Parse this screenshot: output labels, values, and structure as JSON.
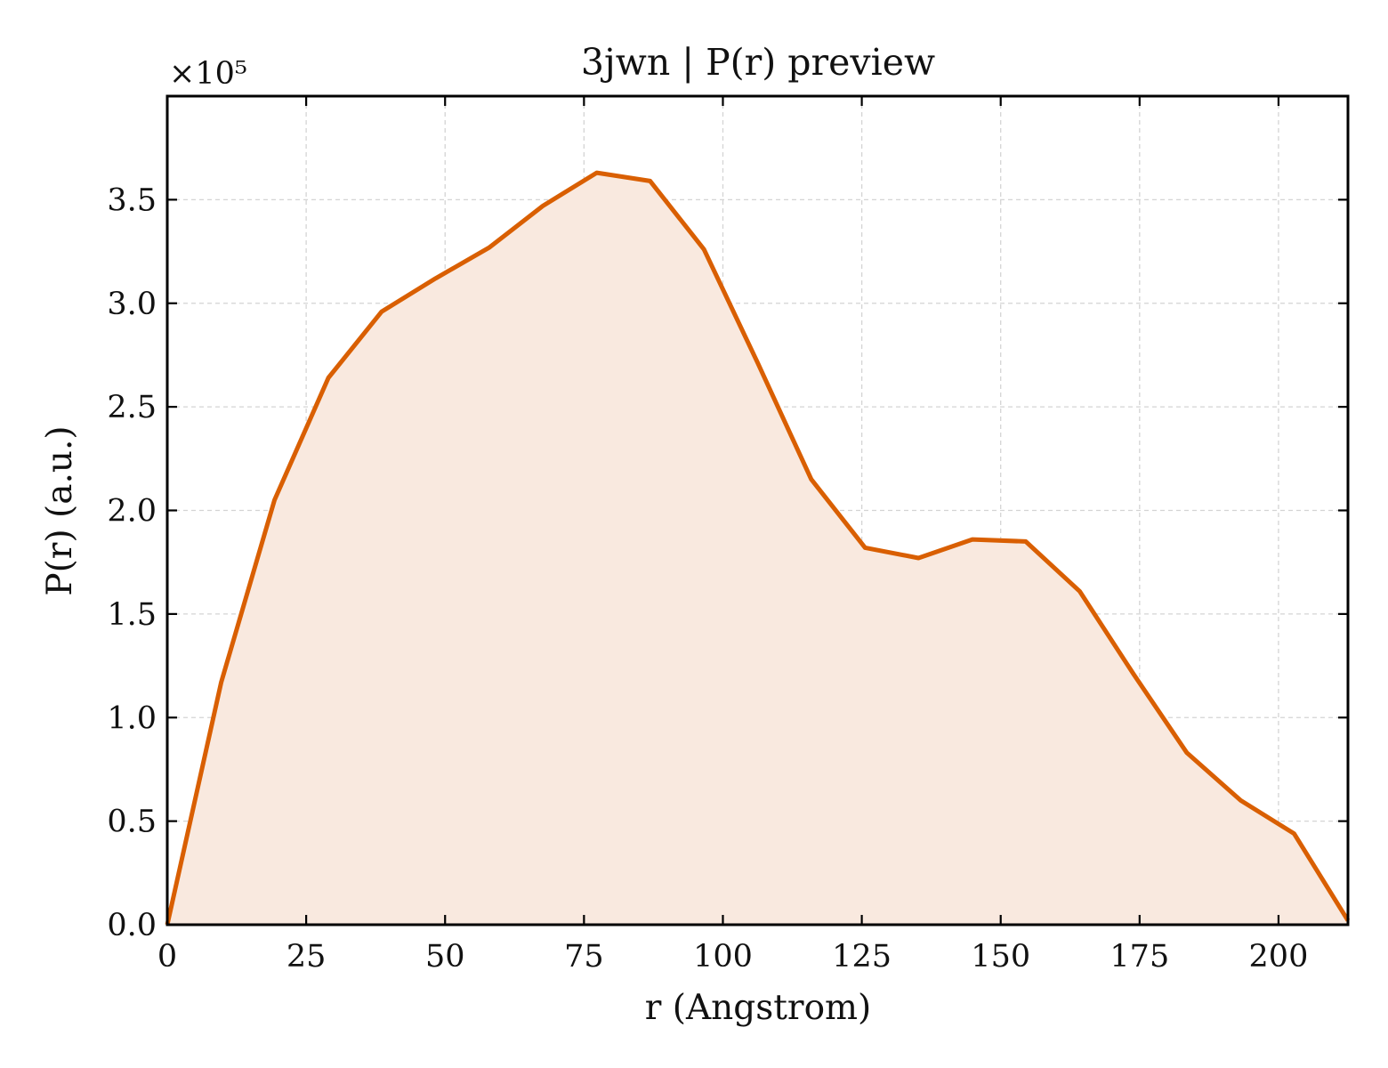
{
  "chart_data": {
    "type": "area",
    "title": "3jwn | P(r) preview",
    "xlabel": "r (Angstrom)",
    "ylabel": "P(r) (a.u.)",
    "y_multiplier": "×10⁵",
    "xlim": [
      0,
      212.5
    ],
    "ylim": [
      0,
      4.0
    ],
    "x_ticks": [
      0,
      25,
      50,
      75,
      100,
      125,
      150,
      175,
      200
    ],
    "y_ticks": [
      0.0,
      0.5,
      1.0,
      1.5,
      2.0,
      2.5,
      3.0,
      3.5
    ],
    "x_tick_labels": [
      "0",
      "25",
      "50",
      "75",
      "100",
      "125",
      "150",
      "175",
      "200"
    ],
    "y_tick_labels": [
      "0.0",
      "0.5",
      "1.0",
      "1.5",
      "2.0",
      "2.5",
      "3.0",
      "3.5"
    ],
    "grid": true,
    "series": [
      {
        "color": "#d95f02",
        "fill_color": "#f9e9df",
        "x": [
          0,
          9.7,
          19.3,
          29.0,
          38.6,
          48.3,
          58.0,
          67.6,
          77.3,
          86.9,
          96.6,
          106.3,
          115.9,
          125.6,
          135.2,
          144.9,
          154.5,
          164.2,
          173.9,
          183.5,
          193.2,
          202.8,
          212.5
        ],
        "y": [
          0.0,
          1.17,
          2.05,
          2.64,
          2.96,
          3.12,
          3.27,
          3.47,
          3.63,
          3.59,
          3.26,
          2.71,
          2.15,
          1.82,
          1.77,
          1.86,
          1.85,
          1.61,
          1.21,
          0.83,
          0.6,
          0.44,
          0.02
        ]
      }
    ]
  }
}
